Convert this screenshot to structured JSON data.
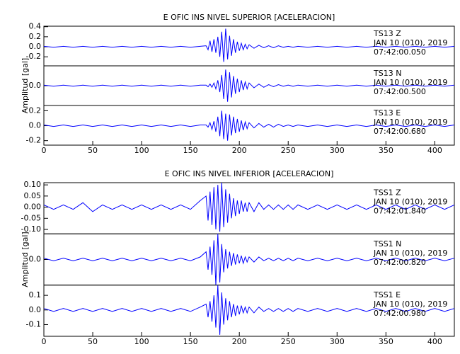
{
  "chart_data": [
    {
      "type": "line",
      "title": "E OFIC INS NIVEL SUPERIOR [ACELERACION]",
      "ylabel": "Amplitud [gal]",
      "color": "#0000ff",
      "xlim": [
        0,
        420
      ],
      "xticks": [
        0,
        50,
        100,
        150,
        200,
        250,
        300,
        350,
        400
      ],
      "x": [
        0,
        10,
        20,
        30,
        40,
        50,
        60,
        70,
        80,
        90,
        100,
        110,
        120,
        130,
        140,
        150,
        160,
        166,
        168,
        170,
        172,
        174,
        176,
        178,
        180,
        182,
        184,
        186,
        188,
        190,
        192,
        194,
        196,
        198,
        200,
        202,
        204,
        206,
        208,
        210,
        215,
        220,
        225,
        230,
        235,
        240,
        245,
        250,
        255,
        260,
        270,
        280,
        290,
        300,
        310,
        320,
        330,
        340,
        350,
        360,
        370,
        380,
        390,
        400,
        410,
        420
      ],
      "panels": [
        {
          "ylim": [
            -0.38,
            0.41
          ],
          "yticks": [
            0.4,
            0.2,
            {
              "value": 0,
              "label": "0.0"
            },
            -0.2
          ],
          "annotation": [
            "TS13   Z",
            "JAN 10 (010), 2019",
            "07:42:00.050"
          ],
          "values": [
            0.01,
            -0.01,
            0.01,
            -0.01,
            0.01,
            -0.01,
            0.01,
            -0.01,
            0.01,
            -0.01,
            0.01,
            -0.01,
            0.01,
            -0.01,
            0.01,
            -0.01,
            0.01,
            0.02,
            -0.06,
            0.12,
            -0.1,
            0.15,
            -0.12,
            0.2,
            -0.2,
            0.3,
            -0.3,
            0.36,
            -0.25,
            0.22,
            -0.18,
            0.15,
            -0.12,
            0.1,
            -0.08,
            0.07,
            -0.06,
            0.05,
            -0.04,
            0.04,
            -0.03,
            0.03,
            -0.02,
            0.02,
            -0.02,
            0.02,
            -0.01,
            0.01,
            -0.01,
            0.01,
            -0.01,
            0.01,
            -0.01,
            0.01,
            -0.01,
            0.01,
            -0.01,
            0.01,
            -0.01,
            0.01,
            -0.01,
            0.01,
            -0.01,
            0.01,
            -0.01,
            0.01
          ]
        },
        {
          "ylim": [
            -0.37,
            0.37
          ],
          "yticks": [
            {
              "value": 0,
              "label": "0.0"
            }
          ],
          "annotation": [
            "TS13   N",
            "JAN 10 (010), 2019",
            "07:42:00.500"
          ],
          "values": [
            0.01,
            -0.01,
            0.01,
            -0.01,
            0.01,
            -0.01,
            0.01,
            -0.01,
            0.01,
            -0.01,
            0.01,
            -0.01,
            0.01,
            -0.01,
            0.01,
            -0.01,
            0.01,
            0.01,
            -0.02,
            0.03,
            -0.03,
            0.05,
            -0.06,
            0.1,
            -0.12,
            0.2,
            -0.25,
            0.3,
            -0.3,
            0.25,
            -0.22,
            0.18,
            -0.15,
            0.13,
            -0.12,
            0.1,
            -0.08,
            0.07,
            -0.06,
            0.05,
            -0.04,
            0.03,
            -0.03,
            0.02,
            -0.02,
            0.02,
            -0.01,
            0.01,
            -0.01,
            0.01,
            -0.01,
            0.01,
            -0.01,
            0.01,
            -0.01,
            0.01,
            -0.01,
            0.01,
            -0.01,
            0.01,
            -0.01,
            0.01,
            -0.01,
            0.01,
            -0.01,
            0.01
          ]
        },
        {
          "ylim": [
            -0.26,
            0.27
          ],
          "yticks": [
            0.2,
            {
              "value": 0,
              "label": "0.0"
            },
            -0.2
          ],
          "annotation": [
            "TS13   E",
            "JAN 10 (010), 2019",
            "07:42:00.680"
          ],
          "values": [
            0.01,
            -0.01,
            0.01,
            -0.01,
            0.01,
            -0.01,
            0.01,
            -0.01,
            0.01,
            -0.01,
            0.01,
            -0.01,
            0.01,
            -0.01,
            0.01,
            -0.01,
            0.01,
            0.01,
            -0.02,
            0.04,
            -0.05,
            0.06,
            -0.08,
            0.12,
            -0.14,
            0.2,
            -0.18,
            0.16,
            -0.2,
            0.15,
            -0.13,
            0.12,
            -0.1,
            0.09,
            -0.08,
            0.07,
            -0.06,
            0.05,
            -0.04,
            0.04,
            -0.03,
            0.03,
            -0.02,
            0.02,
            -0.02,
            0.02,
            -0.01,
            0.01,
            -0.01,
            0.01,
            -0.01,
            0.01,
            -0.01,
            0.01,
            -0.01,
            0.01,
            -0.01,
            0.01,
            -0.01,
            0.01,
            -0.01,
            0.01,
            -0.01,
            0.01,
            -0.01,
            0.01
          ]
        }
      ]
    },
    {
      "type": "line",
      "title": "E OFIC INS NIVEL INFERIOR [ACELERACION]",
      "ylabel": "Amplitud [gal]",
      "color": "#0000ff",
      "xlim": [
        0,
        420
      ],
      "xticks": [
        0,
        50,
        100,
        150,
        200,
        250,
        300,
        350,
        400
      ],
      "x": [
        0,
        10,
        20,
        30,
        40,
        50,
        60,
        70,
        80,
        90,
        100,
        110,
        120,
        130,
        140,
        150,
        160,
        166,
        168,
        170,
        172,
        174,
        176,
        178,
        180,
        182,
        184,
        186,
        188,
        190,
        192,
        194,
        196,
        198,
        200,
        202,
        204,
        206,
        208,
        210,
        215,
        220,
        225,
        230,
        235,
        240,
        245,
        250,
        255,
        260,
        270,
        280,
        290,
        300,
        310,
        320,
        330,
        340,
        350,
        360,
        370,
        380,
        390,
        400,
        410,
        420
      ],
      "panels": [
        {
          "ylim": [
            -0.12,
            0.11
          ],
          "yticks": [
            {
              "value": 0.1,
              "label": "0.10"
            },
            0.05,
            {
              "value": 0,
              "label": "0.00"
            },
            -0.05,
            {
              "value": -0.1,
              "label": "-0.10"
            }
          ],
          "annotation": [
            "TSS1   Z",
            "JAN 10 (010), 2019",
            "07:42:01.840"
          ],
          "values": [
            0.01,
            -0.01,
            0.01,
            -0.01,
            0.02,
            -0.02,
            0.01,
            -0.01,
            0.01,
            -0.01,
            0.01,
            -0.01,
            0.01,
            -0.01,
            0.01,
            -0.01,
            0.03,
            0.05,
            -0.06,
            0.07,
            -0.08,
            0.09,
            -0.1,
            0.1,
            -0.11,
            0.11,
            -0.09,
            0.08,
            -0.07,
            0.06,
            -0.05,
            0.04,
            -0.04,
            0.03,
            -0.03,
            0.03,
            -0.02,
            0.02,
            -0.02,
            0.02,
            -0.02,
            0.02,
            -0.01,
            0.01,
            -0.01,
            0.01,
            -0.01,
            0.01,
            -0.01,
            0.01,
            -0.01,
            0.01,
            -0.01,
            0.01,
            -0.01,
            0.01,
            -0.01,
            0.01,
            -0.01,
            0.01,
            -0.01,
            0.01,
            -0.01,
            0.01,
            -0.01,
            0.01
          ]
        },
        {
          "ylim": [
            -0.2,
            0.2
          ],
          "yticks": [
            {
              "value": 0,
              "label": "0.0"
            }
          ],
          "annotation": [
            "TSS1   N",
            "JAN 10 (010), 2019",
            "07:42:00.820"
          ],
          "values": [
            0.01,
            -0.01,
            0.01,
            -0.01,
            0.01,
            -0.01,
            0.01,
            -0.01,
            0.01,
            -0.01,
            0.01,
            -0.01,
            0.01,
            -0.01,
            0.01,
            -0.01,
            0.02,
            0.06,
            -0.08,
            0.1,
            -0.12,
            0.15,
            -0.2,
            0.2,
            -0.18,
            0.12,
            -0.1,
            0.08,
            -0.07,
            0.06,
            -0.05,
            0.05,
            -0.04,
            0.04,
            -0.03,
            0.03,
            -0.03,
            0.02,
            -0.02,
            0.02,
            -0.02,
            0.02,
            -0.01,
            0.01,
            -0.01,
            0.01,
            -0.01,
            0.01,
            -0.01,
            0.01,
            -0.01,
            0.01,
            -0.01,
            0.01,
            -0.01,
            0.01,
            -0.01,
            0.01,
            -0.01,
            0.01,
            -0.01,
            0.01,
            -0.01,
            0.01,
            -0.01,
            0.01
          ]
        },
        {
          "ylim": [
            -0.18,
            0.17
          ],
          "yticks": [
            0.1,
            {
              "value": 0,
              "label": "0.0"
            },
            -0.1
          ],
          "annotation": [
            "TSS1   E",
            "JAN 10 (010), 2019",
            "07:42:00.980"
          ],
          "values": [
            0.01,
            -0.01,
            0.01,
            -0.01,
            0.01,
            -0.01,
            0.01,
            -0.01,
            0.01,
            -0.01,
            0.01,
            -0.01,
            0.01,
            -0.01,
            0.01,
            -0.01,
            0.02,
            0.04,
            -0.05,
            0.06,
            -0.08,
            0.1,
            -0.12,
            0.17,
            -0.17,
            0.12,
            -0.1,
            0.08,
            -0.07,
            0.06,
            -0.05,
            0.04,
            -0.04,
            0.03,
            -0.03,
            0.03,
            -0.02,
            0.02,
            -0.02,
            0.02,
            -0.02,
            0.02,
            -0.01,
            0.01,
            -0.01,
            0.01,
            -0.01,
            0.01,
            -0.01,
            0.01,
            -0.01,
            0.01,
            -0.01,
            0.01,
            -0.01,
            0.01,
            -0.01,
            0.01,
            -0.01,
            0.01,
            -0.01,
            0.01,
            -0.01,
            0.01,
            -0.01,
            0.01
          ]
        }
      ]
    }
  ]
}
